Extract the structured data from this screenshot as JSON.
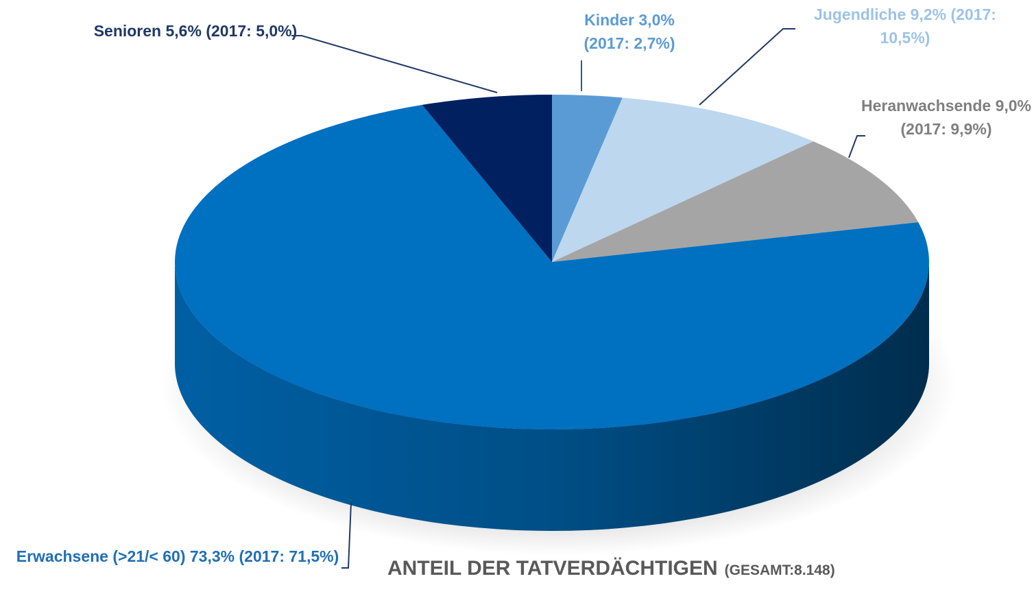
{
  "chart_data": {
    "type": "pie",
    "title": "ANTEIL DER TATVERDÄCHTIGEN",
    "subtitle": "(GESAMT:8.148)",
    "categories": [
      "Kinder",
      "Jugendliche",
      "Heranwachsende",
      "Erwachsene (>21/< 60)",
      "Senioren"
    ],
    "values": [
      3.0,
      9.2,
      9.0,
      73.3,
      5.6
    ],
    "value_labels": [
      "3,0%",
      "9,2%",
      "9,0%",
      "73,3%",
      "5,6%"
    ],
    "labels_2017": [
      "(2017: 2,7%)",
      "(2017: 10,5%)",
      "(2017: 9,9%)",
      "(2017: 71,5%)",
      "(2017: 5,0%)"
    ],
    "colors": [
      "#5b9bd5",
      "#bdd7ee",
      "#a5a5a5",
      "#0070c0",
      "#002060"
    ],
    "label_colors": [
      "#5b9bd5",
      "#9dc3e6",
      "#7f7f7f",
      "#1f6fb5",
      "#1f3864"
    ]
  }
}
